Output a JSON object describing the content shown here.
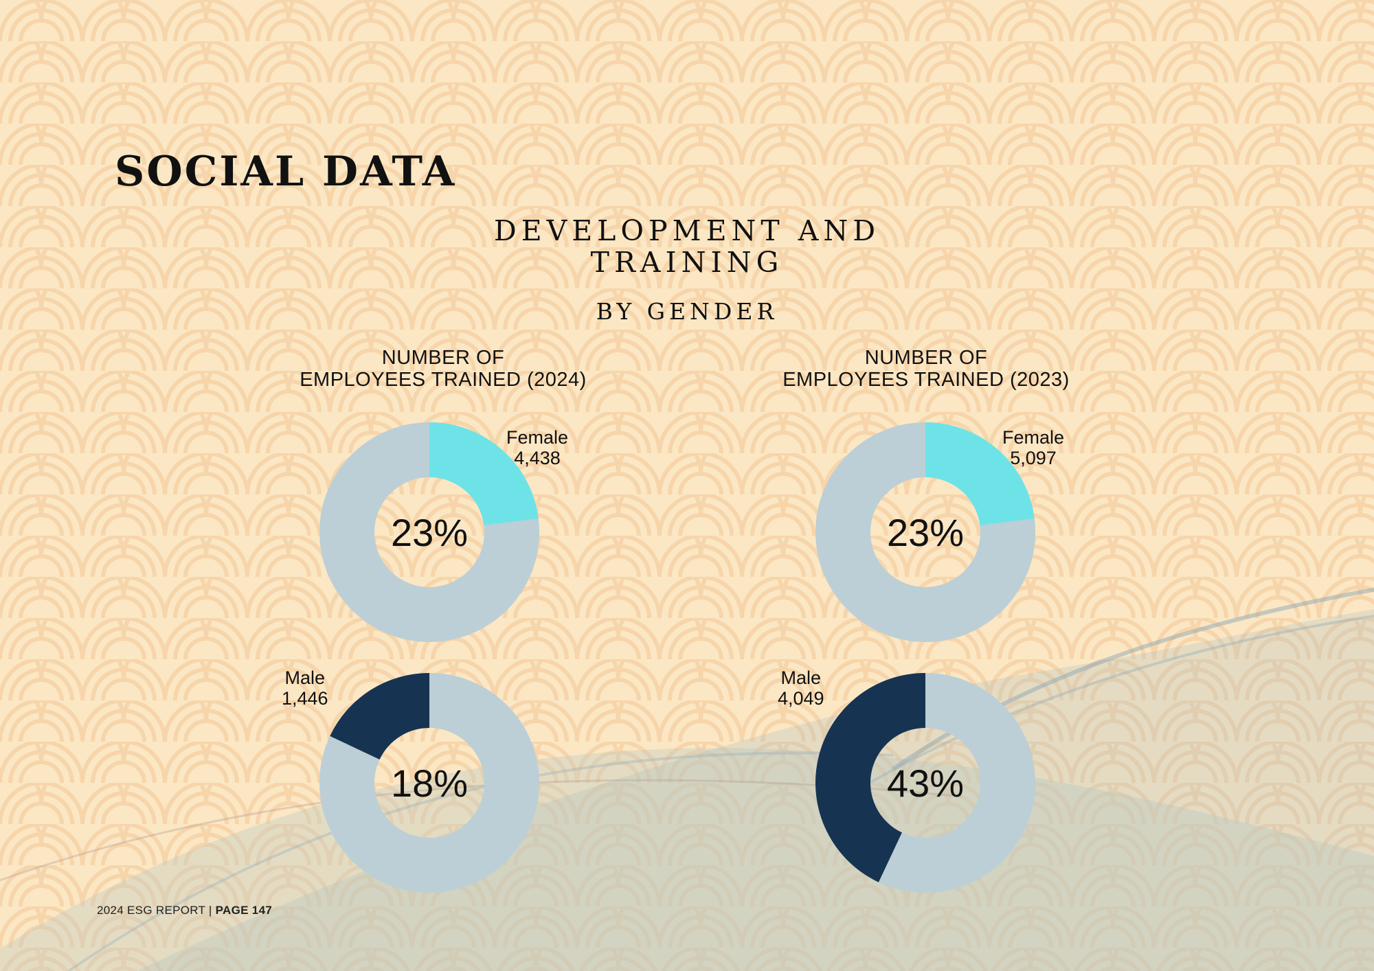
{
  "page": {
    "title": "SOCIAL DATA",
    "section_title_line1": "DEVELOPMENT AND",
    "section_title_line2": "TRAINING",
    "subtitle": "BY GENDER",
    "footer_report": "2024 ESG REPORT |",
    "footer_page": "PAGE 147"
  },
  "colors": {
    "background": "#fbe7c4",
    "pattern": "#f5cfa2",
    "donut_track": "#bccfd6",
    "female": "#6ee3e7",
    "male": "#163351"
  },
  "chart_data": [
    {
      "type": "pie",
      "title_line1": "NUMBER OF",
      "title_line2": "EMPLOYEES TRAINED (2024)",
      "donuts": [
        {
          "name": "Female",
          "count": "4,438",
          "percent": 23,
          "label": "23%",
          "color": "#6ee3e7"
        },
        {
          "name": "Male",
          "count": "1,446",
          "percent": 18,
          "label": "18%",
          "color": "#163351"
        }
      ]
    },
    {
      "type": "pie",
      "title_line1": "NUMBER OF",
      "title_line2": "EMPLOYEES TRAINED (2023)",
      "donuts": [
        {
          "name": "Female",
          "count": "5,097",
          "percent": 23,
          "label": "23%",
          "color": "#6ee3e7"
        },
        {
          "name": "Male",
          "count": "4,049",
          "percent": 43,
          "label": "43%",
          "color": "#163351"
        }
      ]
    }
  ]
}
